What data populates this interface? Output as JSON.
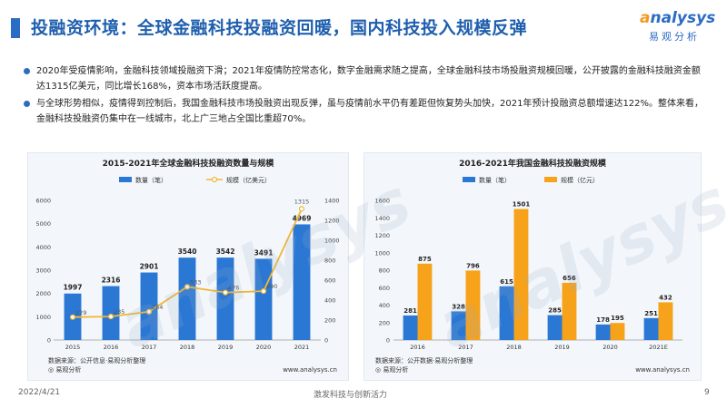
{
  "title": "投融资环境：全球金融科技投融资回暖，国内科技投入规模反弹",
  "logo": {
    "word_prefix": "",
    "word_o": "a",
    "word_rest": "nalysys",
    "cn": "易观分析"
  },
  "bullets": [
    "2020年受疫情影响，金融科技领域投融资下滑；2021年疫情防控常态化，数字金融需求随之提高，全球金融科技市场投融资规模回暖，公开披露的金融科技融资金额达1315亿美元，同比增长168%，资本市场活跃度提高。",
    "与全球形势相似，疫情得到控制后，我国金融科技市场投融资出现反弹，虽与疫情前水平仍有差距但恢复势头加快，2021年预计投融资总额增速达122%。整体来看，金融科技投融资仍集中在一线城市，北上广三地占全国比重超70%。"
  ],
  "footer": {
    "date": "2022/4/21",
    "slogan": "激发科技与创新活力",
    "page": "9"
  },
  "watermark": {
    "word": "analysys",
    "cn": "易观分析"
  },
  "colors": {
    "blue": "#2b78d4",
    "orange": "#f7a21b",
    "line": "#f2b632",
    "title": "#1f5fae"
  },
  "chart_data": [
    {
      "type": "bar",
      "title": "2015-2021年全球金融科技投融资数量与规模",
      "categories": [
        "2015",
        "2016",
        "2017",
        "2018",
        "2019",
        "2020",
        "2021"
      ],
      "series": [
        {
          "name": "数量（笔）",
          "kind": "bar",
          "axis": "left",
          "values": [
            1997,
            2316,
            2901,
            3540,
            3542,
            3491,
            4969
          ]
        },
        {
          "name": "规模（亿美元）",
          "kind": "line",
          "axis": "right",
          "values": [
            229,
            235,
            284,
            533,
            476,
            490,
            1315
          ]
        }
      ],
      "ylim_left": [
        0,
        6000
      ],
      "yticks_left": [
        "0",
        "1000",
        "2000",
        "3000",
        "4000",
        "5000",
        "6000"
      ],
      "ylim_right": [
        0,
        1400
      ],
      "yticks_right": [
        "0",
        "200",
        "400",
        "600",
        "800",
        "1000",
        "1200",
        "1400"
      ],
      "source": "数据来源：公开信息·易观分析整理",
      "brand": "◎ 易观分析",
      "url": "www.analysys.cn"
    },
    {
      "type": "bar",
      "title": "2016-2021年我国金融科技投融资规模",
      "categories": [
        "2016",
        "2017",
        "2018",
        "2019",
        "2020",
        "2021E"
      ],
      "series": [
        {
          "name": "数量（笔）",
          "values": [
            281,
            328,
            615,
            285,
            178,
            251
          ]
        },
        {
          "name": "规模（亿元）",
          "values": [
            875,
            796,
            1501,
            656,
            195,
            432
          ]
        }
      ],
      "ylim": [
        0,
        1600
      ],
      "yticks": [
        "0",
        "200",
        "400",
        "600",
        "800",
        "1000",
        "1200",
        "1400",
        "1600"
      ],
      "source": "数据来源：公开数据·易观分析整理",
      "brand": "◎ 易观分析",
      "url": "www.analysys.cn"
    }
  ]
}
